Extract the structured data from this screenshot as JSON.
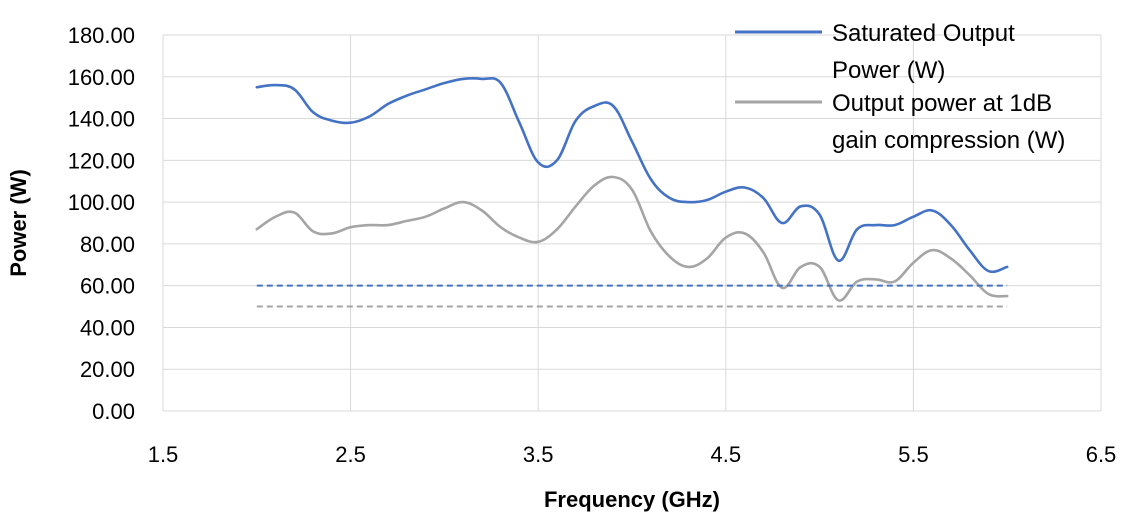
{
  "chart_data": {
    "type": "line",
    "xlabel": "Frequency (GHz)",
    "ylabel": "Power (W)",
    "xlim": [
      1.5,
      6.5
    ],
    "ylim": [
      0,
      180
    ],
    "x_ticks": [
      "1.5",
      "2.5",
      "3.5",
      "4.5",
      "5.5",
      "6.5"
    ],
    "y_ticks": [
      "0.00",
      "20.00",
      "40.00",
      "60.00",
      "80.00",
      "100.00",
      "120.00",
      "140.00",
      "160.00",
      "180.00"
    ],
    "grid": true,
    "legend_position": "top-right",
    "series": [
      {
        "name": "Saturated Output Power (W)",
        "legend_lines": [
          "Saturated Output",
          "Power (W)"
        ],
        "color": "#4472C4",
        "x": [
          2.0,
          2.1,
          2.2,
          2.3,
          2.4,
          2.5,
          2.6,
          2.7,
          2.8,
          2.9,
          3.0,
          3.1,
          3.2,
          3.3,
          3.4,
          3.5,
          3.6,
          3.7,
          3.8,
          3.9,
          4.0,
          4.1,
          4.2,
          4.3,
          4.4,
          4.5,
          4.6,
          4.7,
          4.8,
          4.9,
          5.0,
          5.1,
          5.2,
          5.3,
          5.4,
          5.5,
          5.6,
          5.7,
          5.8,
          5.9,
          6.0
        ],
        "y": [
          155,
          156,
          154,
          143,
          139,
          138,
          141,
          147,
          151,
          154,
          157,
          159,
          159,
          157,
          138,
          119,
          120,
          139,
          146,
          146,
          129,
          111,
          102,
          100,
          101,
          105,
          107,
          102,
          90,
          98,
          94,
          72,
          87,
          89,
          89,
          93,
          96,
          89,
          77,
          67,
          69
        ]
      },
      {
        "name": "Output power at 1dB gain compression (W)",
        "legend_lines": [
          "Output power at 1dB",
          "gain compression (W)"
        ],
        "color": "#A5A5A5",
        "x": [
          2.0,
          2.1,
          2.2,
          2.3,
          2.4,
          2.5,
          2.6,
          2.7,
          2.8,
          2.9,
          3.0,
          3.1,
          3.2,
          3.3,
          3.4,
          3.5,
          3.6,
          3.7,
          3.8,
          3.9,
          4.0,
          4.1,
          4.2,
          4.3,
          4.4,
          4.5,
          4.6,
          4.7,
          4.8,
          4.9,
          5.0,
          5.1,
          5.2,
          5.3,
          5.4,
          5.5,
          5.6,
          5.7,
          5.8,
          5.9,
          6.0
        ],
        "y": [
          87,
          93,
          95,
          86,
          85,
          88,
          89,
          89,
          91,
          93,
          97,
          100,
          96,
          88,
          83,
          81,
          87,
          98,
          108,
          112,
          106,
          86,
          74,
          69,
          73,
          83,
          85,
          76,
          59,
          69,
          69,
          53,
          62,
          63,
          62,
          71,
          77,
          73,
          65,
          56,
          55
        ]
      },
      {
        "color": "#4472C4",
        "dashed": true,
        "x": [
          2.0,
          6.0
        ],
        "y": [
          60,
          60
        ]
      },
      {
        "color": "#A5A5A5",
        "dashed": true,
        "x": [
          2.0,
          6.0
        ],
        "y": [
          50,
          50
        ]
      }
    ]
  }
}
